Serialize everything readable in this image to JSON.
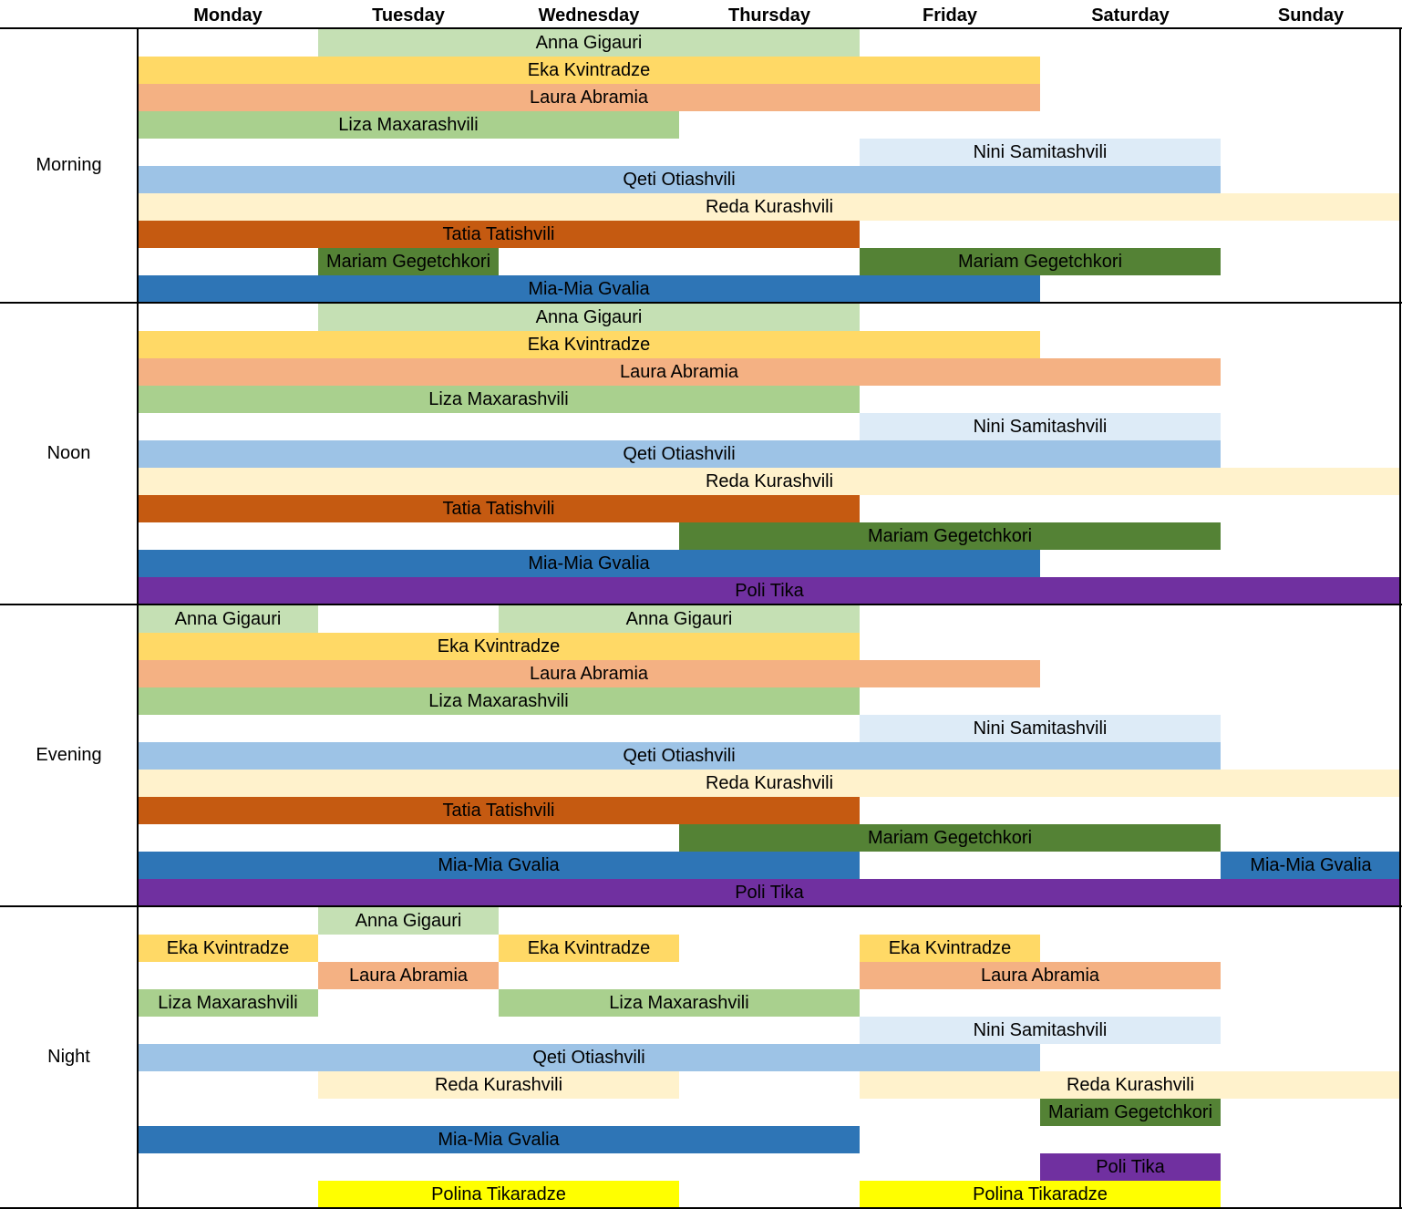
{
  "days": [
    "Monday",
    "Tuesday",
    "Wednesday",
    "Thursday",
    "Friday",
    "Saturday",
    "Sunday"
  ],
  "colors": {
    "anna": "#C5E0B4",
    "eka": "#FFD966",
    "laura": "#F4B183",
    "liza": "#A9D08E",
    "nini": "#DDEBF7",
    "qeti": "#9DC3E6",
    "reda": "#FFF2CC",
    "tatia": "#C55A11",
    "mariam": "#548235",
    "mia": "#2E75B6",
    "poli": "#7030A0",
    "polina": "#FFFF00"
  },
  "periods": [
    {
      "label": "Morning",
      "rows": [
        [
          {
            "name": "Anna Gigauri",
            "from": 2,
            "to": 4,
            "color": "anna"
          }
        ],
        [
          {
            "name": "Eka Kvintradze",
            "from": 1,
            "to": 5,
            "color": "eka"
          }
        ],
        [
          {
            "name": "Laura Abramia",
            "from": 1,
            "to": 5,
            "color": "laura"
          }
        ],
        [
          {
            "name": "Liza Maxarashvili",
            "from": 1,
            "to": 3,
            "color": "liza"
          }
        ],
        [
          {
            "name": "Nini Samitashvili",
            "from": 5,
            "to": 6,
            "color": "nini"
          }
        ],
        [
          {
            "name": "Qeti Otiashvili",
            "from": 1,
            "to": 6,
            "color": "qeti"
          }
        ],
        [
          {
            "name": "Reda Kurashvili",
            "from": 1,
            "to": 7,
            "color": "reda"
          }
        ],
        [
          {
            "name": "Tatia Tatishvili",
            "from": 1,
            "to": 4,
            "color": "tatia"
          }
        ],
        [
          {
            "name": "Mariam Gegetchkori",
            "from": 2,
            "to": 2,
            "color": "mariam"
          },
          {
            "name": "Mariam Gegetchkori",
            "from": 5,
            "to": 6,
            "color": "mariam"
          }
        ],
        [
          {
            "name": "Mia-Mia Gvalia",
            "from": 1,
            "to": 5,
            "color": "mia"
          }
        ]
      ]
    },
    {
      "label": "Noon",
      "rows": [
        [
          {
            "name": "Anna Gigauri",
            "from": 2,
            "to": 4,
            "color": "anna"
          }
        ],
        [
          {
            "name": "Eka Kvintradze",
            "from": 1,
            "to": 5,
            "color": "eka"
          }
        ],
        [
          {
            "name": "Laura Abramia",
            "from": 1,
            "to": 6,
            "color": "laura"
          }
        ],
        [
          {
            "name": "Liza Maxarashvili",
            "from": 1,
            "to": 4,
            "color": "liza"
          }
        ],
        [
          {
            "name": "Nini Samitashvili",
            "from": 5,
            "to": 6,
            "color": "nini"
          }
        ],
        [
          {
            "name": "Qeti Otiashvili",
            "from": 1,
            "to": 6,
            "color": "qeti"
          }
        ],
        [
          {
            "name": "Reda Kurashvili",
            "from": 1,
            "to": 7,
            "color": "reda"
          }
        ],
        [
          {
            "name": "Tatia Tatishvili",
            "from": 1,
            "to": 4,
            "color": "tatia"
          }
        ],
        [
          {
            "name": "Mariam Gegetchkori",
            "from": 4,
            "to": 6,
            "color": "mariam"
          }
        ],
        [
          {
            "name": "Mia-Mia Gvalia",
            "from": 1,
            "to": 5,
            "color": "mia"
          }
        ],
        [
          {
            "name": "Poli Tika",
            "from": 1,
            "to": 7,
            "color": "poli"
          }
        ]
      ]
    },
    {
      "label": "Evening",
      "rows": [
        [
          {
            "name": "Anna Gigauri",
            "from": 1,
            "to": 1,
            "color": "anna"
          },
          {
            "name": "Anna Gigauri",
            "from": 3,
            "to": 4,
            "color": "anna"
          }
        ],
        [
          {
            "name": "Eka Kvintradze",
            "from": 1,
            "to": 4,
            "color": "eka"
          }
        ],
        [
          {
            "name": "Laura Abramia",
            "from": 1,
            "to": 5,
            "color": "laura"
          }
        ],
        [
          {
            "name": "Liza Maxarashvili",
            "from": 1,
            "to": 4,
            "color": "liza"
          }
        ],
        [
          {
            "name": "Nini Samitashvili",
            "from": 5,
            "to": 6,
            "color": "nini"
          }
        ],
        [
          {
            "name": "Qeti Otiashvili",
            "from": 1,
            "to": 6,
            "color": "qeti"
          }
        ],
        [
          {
            "name": "Reda Kurashvili",
            "from": 1,
            "to": 7,
            "color": "reda"
          }
        ],
        [
          {
            "name": "Tatia Tatishvili",
            "from": 1,
            "to": 4,
            "color": "tatia"
          }
        ],
        [
          {
            "name": "Mariam Gegetchkori",
            "from": 4,
            "to": 6,
            "color": "mariam"
          }
        ],
        [
          {
            "name": "Mia-Mia Gvalia",
            "from": 1,
            "to": 4,
            "color": "mia"
          },
          {
            "name": "Mia-Mia Gvalia",
            "from": 7,
            "to": 7,
            "color": "mia"
          }
        ],
        [
          {
            "name": "Poli Tika",
            "from": 1,
            "to": 7,
            "color": "poli"
          }
        ]
      ]
    },
    {
      "label": "Night",
      "rows": [
        [
          {
            "name": "Anna Gigauri",
            "from": 2,
            "to": 2,
            "color": "anna"
          }
        ],
        [
          {
            "name": "Eka Kvintradze",
            "from": 1,
            "to": 1,
            "color": "eka"
          },
          {
            "name": "Eka Kvintradze",
            "from": 3,
            "to": 3,
            "color": "eka"
          },
          {
            "name": "Eka Kvintradze",
            "from": 5,
            "to": 5,
            "color": "eka"
          }
        ],
        [
          {
            "name": "Laura Abramia",
            "from": 2,
            "to": 2,
            "color": "laura"
          },
          {
            "name": "Laura Abramia",
            "from": 5,
            "to": 6,
            "color": "laura"
          }
        ],
        [
          {
            "name": "Liza Maxarashvili",
            "from": 1,
            "to": 1,
            "color": "liza"
          },
          {
            "name": "Liza Maxarashvili",
            "from": 3,
            "to": 4,
            "color": "liza"
          }
        ],
        [
          {
            "name": "Nini Samitashvili",
            "from": 5,
            "to": 6,
            "color": "nini"
          }
        ],
        [
          {
            "name": "Qeti Otiashvili",
            "from": 1,
            "to": 5,
            "color": "qeti"
          }
        ],
        [
          {
            "name": "Reda Kurashvili",
            "from": 2,
            "to": 3,
            "color": "reda"
          },
          {
            "name": "Reda Kurashvili",
            "from": 5,
            "to": 7,
            "color": "reda"
          }
        ],
        [
          {
            "name": "Mariam Gegetchkori",
            "from": 6,
            "to": 6,
            "color": "mariam"
          }
        ],
        [
          {
            "name": "Mia-Mia Gvalia",
            "from": 1,
            "to": 4,
            "color": "mia"
          }
        ],
        [
          {
            "name": "Poli Tika",
            "from": 6,
            "to": 6,
            "color": "poli"
          }
        ],
        [
          {
            "name": "Polina Tikaradze",
            "from": 2,
            "to": 3,
            "color": "polina"
          },
          {
            "name": "Polina Tikaradze",
            "from": 5,
            "to": 6,
            "color": "polina"
          }
        ]
      ]
    }
  ]
}
